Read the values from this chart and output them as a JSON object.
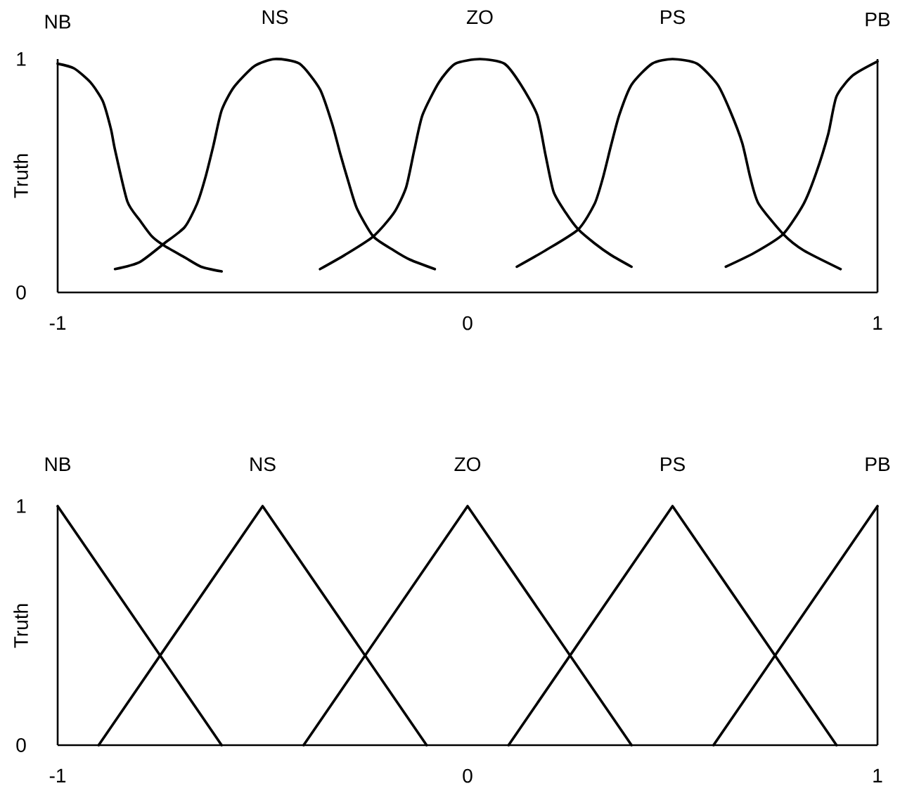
{
  "chart_data": [
    {
      "type": "line",
      "ylabel": "Truth",
      "xlim": [
        -1,
        1
      ],
      "ylim": [
        0,
        1
      ],
      "xticks": [
        -1,
        0,
        1
      ],
      "yticks": [
        0,
        1
      ],
      "series": [
        {
          "name": "NB",
          "color": "#000000",
          "x": [
            -1.0,
            -0.96,
            -0.92,
            -0.89,
            -0.87,
            -0.86,
            -0.83,
            -0.8,
            -0.77,
            -0.74,
            -0.69,
            -0.65,
            -0.6
          ],
          "values": [
            0.98,
            0.96,
            0.9,
            0.82,
            0.7,
            0.61,
            0.39,
            0.31,
            0.24,
            0.2,
            0.15,
            0.11,
            0.09
          ]
        },
        {
          "name": "NS",
          "color": "#000000",
          "x": [
            -0.86,
            -0.8,
            -0.74,
            -0.69,
            -0.66,
            -0.64,
            -0.62,
            -0.6,
            -0.57,
            -0.52,
            -0.47,
            -0.41,
            -0.36,
            -0.33,
            -0.31,
            -0.29,
            -0.27,
            -0.23,
            -0.18,
            -0.14,
            -0.08
          ],
          "values": [
            0.1,
            0.13,
            0.21,
            0.28,
            0.38,
            0.49,
            0.63,
            0.78,
            0.88,
            0.97,
            1.0,
            0.98,
            0.87,
            0.72,
            0.59,
            0.47,
            0.36,
            0.24,
            0.18,
            0.14,
            0.1
          ]
        },
        {
          "name": "ZO",
          "color": "#000000",
          "x": [
            -0.36,
            -0.3,
            -0.23,
            -0.18,
            -0.15,
            -0.13,
            -0.11,
            -0.07,
            -0.03,
            0.03,
            0.09,
            0.13,
            0.17,
            0.19,
            0.21,
            0.24,
            0.27,
            0.31,
            0.35,
            0.4
          ],
          "values": [
            0.1,
            0.16,
            0.24,
            0.34,
            0.45,
            0.61,
            0.76,
            0.9,
            0.98,
            1.0,
            0.98,
            0.89,
            0.76,
            0.59,
            0.43,
            0.34,
            0.27,
            0.21,
            0.16,
            0.11
          ]
        },
        {
          "name": "PS",
          "color": "#000000",
          "x": [
            0.12,
            0.19,
            0.27,
            0.31,
            0.33,
            0.35,
            0.37,
            0.4,
            0.45,
            0.5,
            0.56,
            0.61,
            0.64,
            0.67,
            0.69,
            0.71,
            0.77,
            0.82,
            0.91
          ],
          "values": [
            0.11,
            0.18,
            0.27,
            0.38,
            0.49,
            0.63,
            0.76,
            0.89,
            0.98,
            1.0,
            0.98,
            0.89,
            0.78,
            0.64,
            0.49,
            0.38,
            0.25,
            0.18,
            0.1
          ]
        },
        {
          "name": "PB",
          "color": "#000000",
          "x": [
            0.63,
            0.7,
            0.77,
            0.82,
            0.85,
            0.88,
            0.9,
            0.94,
            1.0
          ],
          "values": [
            0.11,
            0.17,
            0.25,
            0.38,
            0.51,
            0.68,
            0.84,
            0.93,
            0.99
          ]
        }
      ]
    },
    {
      "type": "line",
      "ylabel": "Truth",
      "xlim": [
        -1,
        1
      ],
      "ylim": [
        0,
        1
      ],
      "xticks": [
        -1,
        0,
        1
      ],
      "yticks": [
        0,
        1
      ],
      "series": [
        {
          "name": "NB",
          "color": "#000000",
          "x": [
            -1.0,
            -0.6
          ],
          "values": [
            1,
            0
          ]
        },
        {
          "name": "NS",
          "color": "#000000",
          "x": [
            -0.9,
            -0.5,
            -0.1
          ],
          "values": [
            0,
            1,
            0
          ]
        },
        {
          "name": "ZO",
          "color": "#000000",
          "x": [
            -0.4,
            0,
            0.4
          ],
          "values": [
            0,
            1,
            0
          ]
        },
        {
          "name": "PS",
          "color": "#000000",
          "x": [
            0.1,
            0.5,
            0.9
          ],
          "values": [
            0,
            1,
            0
          ]
        },
        {
          "name": "PB",
          "color": "#000000",
          "x": [
            0.6,
            1.0
          ],
          "values": [
            0,
            1
          ]
        }
      ]
    }
  ]
}
